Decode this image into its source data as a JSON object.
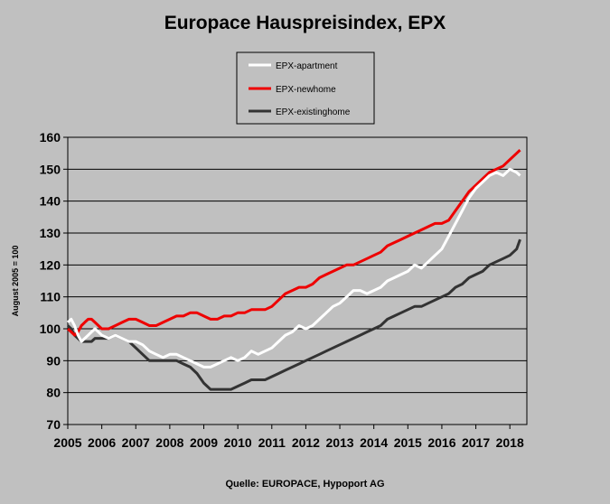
{
  "chart_data": {
    "type": "line",
    "title": "Europace Hauspreisindex, EPX",
    "ylabel": "August 2005 = 100",
    "xlabel": "",
    "source": "Quelle: EUROPACE,   Hypoport AG",
    "ylim": [
      70,
      160
    ],
    "y_ticks": [
      70,
      80,
      90,
      100,
      110,
      120,
      130,
      140,
      150,
      160
    ],
    "xlim": [
      2005.0,
      2018.5
    ],
    "x_tick_labels": [
      "2005",
      "2006",
      "2007",
      "2008",
      "2009",
      "2010",
      "2011",
      "2012",
      "2013",
      "2014",
      "2015",
      "2016",
      "2017",
      "2018"
    ],
    "grid": "horizontal",
    "legend_position": "top-center",
    "colors": {
      "apartment": "#ffffff",
      "newhome": "#ee0000",
      "existinghome": "#333333",
      "plot_bg": "#c0c0c0"
    },
    "series": [
      {
        "name": "EPX-apartment",
        "color": "#ffffff",
        "points": [
          [
            2005.0,
            102
          ],
          [
            2005.1,
            103
          ],
          [
            2005.2,
            101
          ],
          [
            2005.3,
            98
          ],
          [
            2005.4,
            96
          ],
          [
            2005.5,
            97
          ],
          [
            2005.6,
            98
          ],
          [
            2005.7,
            99
          ],
          [
            2005.8,
            100
          ],
          [
            2005.9,
            99
          ],
          [
            2006.0,
            98
          ],
          [
            2006.2,
            97
          ],
          [
            2006.4,
            98
          ],
          [
            2006.6,
            97
          ],
          [
            2006.8,
            96
          ],
          [
            2007.0,
            96
          ],
          [
            2007.2,
            95
          ],
          [
            2007.4,
            93
          ],
          [
            2007.6,
            92
          ],
          [
            2007.8,
            91
          ],
          [
            2008.0,
            92
          ],
          [
            2008.2,
            92
          ],
          [
            2008.4,
            91
          ],
          [
            2008.6,
            90
          ],
          [
            2008.8,
            89
          ],
          [
            2009.0,
            88
          ],
          [
            2009.2,
            88
          ],
          [
            2009.4,
            89
          ],
          [
            2009.6,
            90
          ],
          [
            2009.8,
            91
          ],
          [
            2010.0,
            90
          ],
          [
            2010.2,
            91
          ],
          [
            2010.4,
            93
          ],
          [
            2010.6,
            92
          ],
          [
            2010.8,
            93
          ],
          [
            2011.0,
            94
          ],
          [
            2011.2,
            96
          ],
          [
            2011.4,
            98
          ],
          [
            2011.6,
            99
          ],
          [
            2011.8,
            101
          ],
          [
            2012.0,
            100
          ],
          [
            2012.2,
            101
          ],
          [
            2012.4,
            103
          ],
          [
            2012.6,
            105
          ],
          [
            2012.8,
            107
          ],
          [
            2013.0,
            108
          ],
          [
            2013.2,
            110
          ],
          [
            2013.4,
            112
          ],
          [
            2013.6,
            112
          ],
          [
            2013.8,
            111
          ],
          [
            2014.0,
            112
          ],
          [
            2014.2,
            113
          ],
          [
            2014.4,
            115
          ],
          [
            2014.6,
            116
          ],
          [
            2014.8,
            117
          ],
          [
            2015.0,
            118
          ],
          [
            2015.2,
            120
          ],
          [
            2015.4,
            119
          ],
          [
            2015.6,
            121
          ],
          [
            2015.8,
            123
          ],
          [
            2016.0,
            125
          ],
          [
            2016.2,
            129
          ],
          [
            2016.4,
            133
          ],
          [
            2016.6,
            137
          ],
          [
            2016.8,
            141
          ],
          [
            2017.0,
            144
          ],
          [
            2017.2,
            146
          ],
          [
            2017.4,
            148
          ],
          [
            2017.6,
            149
          ],
          [
            2017.8,
            148
          ],
          [
            2018.0,
            150
          ],
          [
            2018.2,
            149
          ],
          [
            2018.3,
            148
          ]
        ]
      },
      {
        "name": "EPX-newhome",
        "color": "#ee0000",
        "points": [
          [
            2005.0,
            100
          ],
          [
            2005.1,
            99
          ],
          [
            2005.2,
            98
          ],
          [
            2005.3,
            99
          ],
          [
            2005.4,
            101
          ],
          [
            2005.5,
            102
          ],
          [
            2005.6,
            103
          ],
          [
            2005.7,
            103
          ],
          [
            2005.8,
            102
          ],
          [
            2005.9,
            101
          ],
          [
            2006.0,
            100
          ],
          [
            2006.2,
            100
          ],
          [
            2006.4,
            101
          ],
          [
            2006.6,
            102
          ],
          [
            2006.8,
            103
          ],
          [
            2007.0,
            103
          ],
          [
            2007.2,
            102
          ],
          [
            2007.4,
            101
          ],
          [
            2007.6,
            101
          ],
          [
            2007.8,
            102
          ],
          [
            2008.0,
            103
          ],
          [
            2008.2,
            104
          ],
          [
            2008.4,
            104
          ],
          [
            2008.6,
            105
          ],
          [
            2008.8,
            105
          ],
          [
            2009.0,
            104
          ],
          [
            2009.2,
            103
          ],
          [
            2009.4,
            103
          ],
          [
            2009.6,
            104
          ],
          [
            2009.8,
            104
          ],
          [
            2010.0,
            105
          ],
          [
            2010.2,
            105
          ],
          [
            2010.4,
            106
          ],
          [
            2010.6,
            106
          ],
          [
            2010.8,
            106
          ],
          [
            2011.0,
            107
          ],
          [
            2011.2,
            109
          ],
          [
            2011.4,
            111
          ],
          [
            2011.6,
            112
          ],
          [
            2011.8,
            113
          ],
          [
            2012.0,
            113
          ],
          [
            2012.2,
            114
          ],
          [
            2012.4,
            116
          ],
          [
            2012.6,
            117
          ],
          [
            2012.8,
            118
          ],
          [
            2013.0,
            119
          ],
          [
            2013.2,
            120
          ],
          [
            2013.4,
            120
          ],
          [
            2013.6,
            121
          ],
          [
            2013.8,
            122
          ],
          [
            2014.0,
            123
          ],
          [
            2014.2,
            124
          ],
          [
            2014.4,
            126
          ],
          [
            2014.6,
            127
          ],
          [
            2014.8,
            128
          ],
          [
            2015.0,
            129
          ],
          [
            2015.2,
            130
          ],
          [
            2015.4,
            131
          ],
          [
            2015.6,
            132
          ],
          [
            2015.8,
            133
          ],
          [
            2016.0,
            133
          ],
          [
            2016.2,
            134
          ],
          [
            2016.4,
            137
          ],
          [
            2016.6,
            140
          ],
          [
            2016.8,
            143
          ],
          [
            2017.0,
            145
          ],
          [
            2017.2,
            147
          ],
          [
            2017.4,
            149
          ],
          [
            2017.6,
            150
          ],
          [
            2017.8,
            151
          ],
          [
            2018.0,
            153
          ],
          [
            2018.2,
            155
          ],
          [
            2018.3,
            156
          ]
        ]
      },
      {
        "name": "EPX-existinghome",
        "color": "#333333",
        "points": [
          [
            2005.0,
            101
          ],
          [
            2005.1,
            100
          ],
          [
            2005.2,
            98
          ],
          [
            2005.3,
            97
          ],
          [
            2005.4,
            96
          ],
          [
            2005.5,
            96
          ],
          [
            2005.6,
            96
          ],
          [
            2005.7,
            96
          ],
          [
            2005.8,
            97
          ],
          [
            2005.9,
            97
          ],
          [
            2006.0,
            97
          ],
          [
            2006.2,
            97
          ],
          [
            2006.4,
            98
          ],
          [
            2006.6,
            97
          ],
          [
            2006.8,
            96
          ],
          [
            2007.0,
            94
          ],
          [
            2007.2,
            92
          ],
          [
            2007.4,
            90
          ],
          [
            2007.6,
            90
          ],
          [
            2007.8,
            90
          ],
          [
            2008.0,
            90
          ],
          [
            2008.2,
            90
          ],
          [
            2008.4,
            89
          ],
          [
            2008.6,
            88
          ],
          [
            2008.8,
            86
          ],
          [
            2009.0,
            83
          ],
          [
            2009.2,
            81
          ],
          [
            2009.4,
            81
          ],
          [
            2009.6,
            81
          ],
          [
            2009.8,
            81
          ],
          [
            2010.0,
            82
          ],
          [
            2010.2,
            83
          ],
          [
            2010.4,
            84
          ],
          [
            2010.6,
            84
          ],
          [
            2010.8,
            84
          ],
          [
            2011.0,
            85
          ],
          [
            2011.2,
            86
          ],
          [
            2011.4,
            87
          ],
          [
            2011.6,
            88
          ],
          [
            2011.8,
            89
          ],
          [
            2012.0,
            90
          ],
          [
            2012.2,
            91
          ],
          [
            2012.4,
            92
          ],
          [
            2012.6,
            93
          ],
          [
            2012.8,
            94
          ],
          [
            2013.0,
            95
          ],
          [
            2013.2,
            96
          ],
          [
            2013.4,
            97
          ],
          [
            2013.6,
            98
          ],
          [
            2013.8,
            99
          ],
          [
            2014.0,
            100
          ],
          [
            2014.2,
            101
          ],
          [
            2014.4,
            103
          ],
          [
            2014.6,
            104
          ],
          [
            2014.8,
            105
          ],
          [
            2015.0,
            106
          ],
          [
            2015.2,
            107
          ],
          [
            2015.4,
            107
          ],
          [
            2015.6,
            108
          ],
          [
            2015.8,
            109
          ],
          [
            2016.0,
            110
          ],
          [
            2016.2,
            111
          ],
          [
            2016.4,
            113
          ],
          [
            2016.6,
            114
          ],
          [
            2016.8,
            116
          ],
          [
            2017.0,
            117
          ],
          [
            2017.2,
            118
          ],
          [
            2017.4,
            120
          ],
          [
            2017.6,
            121
          ],
          [
            2017.8,
            122
          ],
          [
            2018.0,
            123
          ],
          [
            2018.2,
            125
          ],
          [
            2018.3,
            128
          ]
        ]
      }
    ]
  }
}
